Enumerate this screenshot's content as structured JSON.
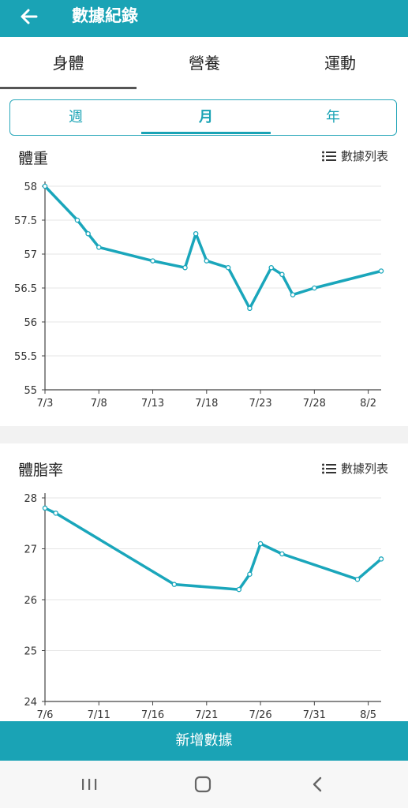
{
  "header": {
    "title": "數據紀錄"
  },
  "tabs": [
    "身體",
    "營養",
    "運動"
  ],
  "period_tabs": [
    "週",
    "月",
    "年"
  ],
  "list_link": "數據列表",
  "bottom_button": "新增數據",
  "colors": {
    "accent": "#1aa3b5",
    "line": "#1aa6bb"
  },
  "chart_data": [
    {
      "type": "line",
      "title": "體重",
      "ylim": [
        55,
        58
      ],
      "yticks": [
        "58",
        "57.5",
        "57",
        "56.5",
        "56",
        "55.5",
        "55"
      ],
      "xticks": [
        "7/3",
        "7/8",
        "7/13",
        "7/18",
        "7/23",
        "7/28",
        "8/2"
      ],
      "x": [
        0,
        3,
        4,
        5,
        10,
        13,
        14,
        15,
        17,
        19,
        21,
        22,
        23,
        25,
        31.2
      ],
      "values": [
        58.0,
        57.5,
        57.3,
        57.1,
        56.9,
        56.8,
        57.3,
        56.9,
        56.8,
        56.2,
        56.8,
        56.7,
        56.4,
        56.5,
        56.75
      ],
      "grid": true
    },
    {
      "type": "line",
      "title": "體脂率",
      "ylim": [
        24,
        28
      ],
      "yticks": [
        "28",
        "27",
        "26",
        "25",
        "24"
      ],
      "xticks": [
        "7/6",
        "7/11",
        "7/16",
        "7/21",
        "7/26",
        "7/31",
        "8/5"
      ],
      "x": [
        0,
        1,
        12,
        18,
        19,
        20,
        22,
        29,
        31.2
      ],
      "values": [
        27.8,
        27.7,
        26.3,
        26.2,
        26.5,
        27.1,
        26.9,
        26.4,
        26.8
      ],
      "grid": true
    }
  ]
}
